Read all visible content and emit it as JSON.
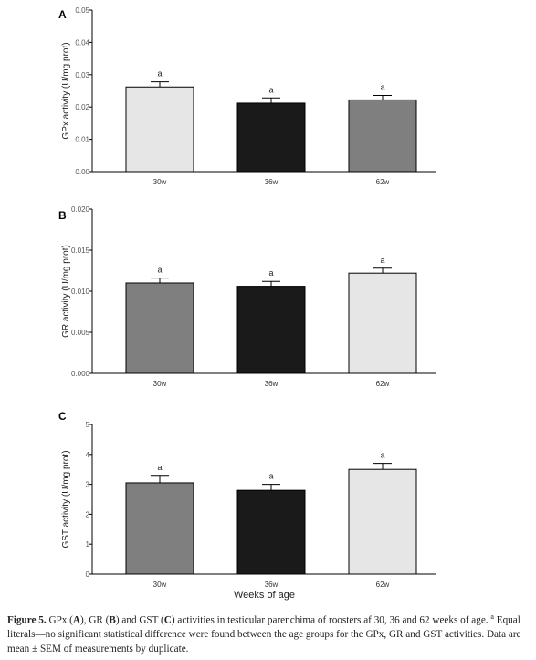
{
  "chart_data": [
    {
      "type": "bar",
      "panel_label": "A",
      "categories": [
        "30w",
        "36w",
        "62w"
      ],
      "values": [
        0.0262,
        0.0212,
        0.0222
      ],
      "errors": [
        0.0016,
        0.0016,
        0.0014
      ],
      "significance": [
        "a",
        "a",
        "a"
      ],
      "bar_colors": [
        "#e6e6e6",
        "#1a1a1a",
        "#7f7f7f"
      ],
      "ylabel": "GPx activity (U/mg prot)",
      "xlabel": "",
      "ylim": [
        0,
        0.05
      ],
      "yticks": [
        "0.00",
        "0.01",
        "0.02",
        "0.03",
        "0.04",
        "0.05"
      ],
      "tick_values": [
        0,
        0.01,
        0.02,
        0.03,
        0.04,
        0.05
      ]
    },
    {
      "type": "bar",
      "panel_label": "B",
      "categories": [
        "30w",
        "36w",
        "62w"
      ],
      "values": [
        0.011,
        0.0106,
        0.0122
      ],
      "errors": [
        0.0006,
        0.0006,
        0.0006
      ],
      "significance": [
        "a",
        "a",
        "a"
      ],
      "bar_colors": [
        "#7f7f7f",
        "#1a1a1a",
        "#e6e6e6"
      ],
      "ylabel": "GR activity (U/mg prot)",
      "xlabel": "",
      "ylim": [
        0,
        0.02
      ],
      "yticks": [
        "0.000",
        "0.005",
        "0.010",
        "0.015",
        "0.020"
      ],
      "tick_values": [
        0,
        0.005,
        0.01,
        0.015,
        0.02
      ]
    },
    {
      "type": "bar",
      "panel_label": "C",
      "categories": [
        "30w",
        "36w",
        "62w"
      ],
      "values": [
        3.05,
        2.8,
        3.5
      ],
      "errors": [
        0.25,
        0.2,
        0.2
      ],
      "significance": [
        "a",
        "a",
        "a"
      ],
      "bar_colors": [
        "#7f7f7f",
        "#1a1a1a",
        "#e6e6e6"
      ],
      "ylabel": "GST activity (U/mg prot)",
      "xlabel": "Weeks of age",
      "ylim": [
        0,
        5
      ],
      "yticks": [
        "0",
        "1",
        "2",
        "3",
        "4",
        "5"
      ],
      "tick_values": [
        0,
        1,
        2,
        3,
        4,
        5
      ]
    }
  ],
  "caption": {
    "label": "Figure 5.",
    "text_1": " GPx (",
    "a": "A",
    "text_2": "), GR (",
    "b": "B",
    "text_3": ") and GST (",
    "c": "C",
    "text_4": ") activities in testicular parenchima of roosters af 30, 36 and 62 weeks of age. ",
    "sup": "a",
    "text_5": " Equal literals—no significant statistical difference were found between the age groups for the GPx, GR and GST activities. Data are mean ± SEM of measurements by duplicate."
  }
}
